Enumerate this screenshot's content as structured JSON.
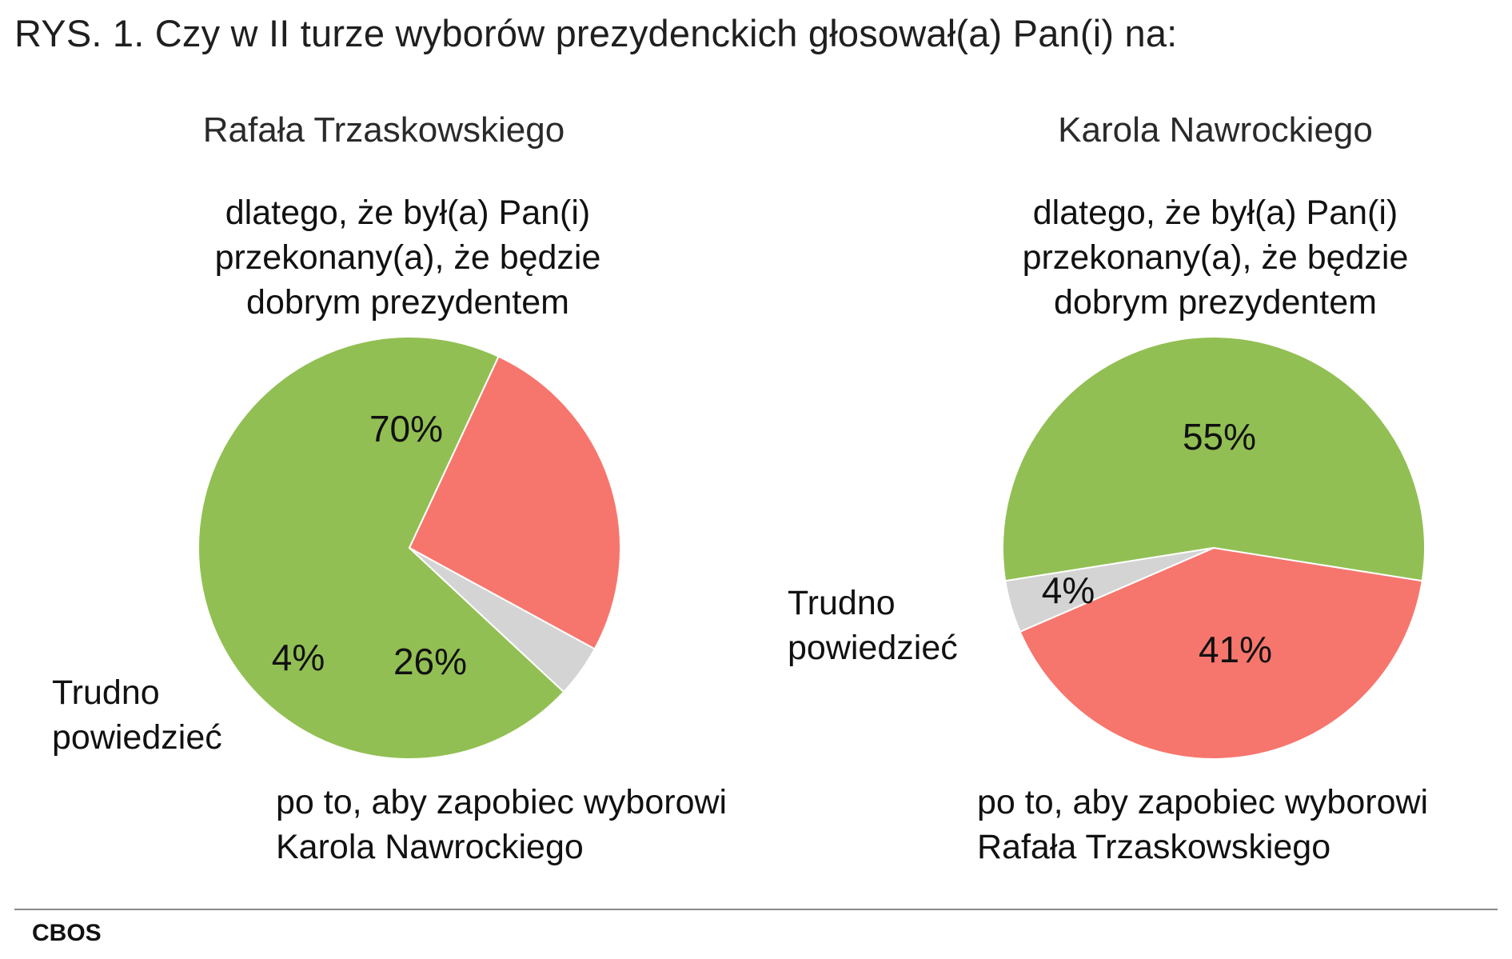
{
  "figure_title": "RYS. 1.  Czy w II turze wyborów prezydenckich głosował(a) Pan(i) na:",
  "source": "CBOS",
  "colors": {
    "green": "#92bf53",
    "red": "#f6766d",
    "grey": "#d4d4d4"
  },
  "chart_data": [
    {
      "type": "pie",
      "title": "Rafała Trzaskowskiego",
      "labels": [
        [
          "dlatego, że był(a) Pan(i)",
          "przekonany(a), że będzie",
          "dobrym prezydentem"
        ],
        [
          "po to, aby zapobiec wyborowi",
          "Karola Nawrockiego"
        ],
        [
          "Trudno",
          "powiedzieć"
        ]
      ],
      "values": [
        70,
        26,
        4
      ],
      "value_labels": [
        "70%",
        "26%",
        "4%"
      ],
      "colors": [
        "#92bf53",
        "#f6766d",
        "#d4d4d4"
      ]
    },
    {
      "type": "pie",
      "title": "Karola Nawrockiego",
      "labels": [
        [
          "dlatego, że był(a) Pan(i)",
          "przekonany(a), że będzie",
          "dobrym prezydentem"
        ],
        [
          "po to, aby zapobiec wyborowi",
          "Rafała Trzaskowskiego"
        ],
        [
          "Trudno",
          "powiedzieć"
        ]
      ],
      "values": [
        55,
        41,
        4
      ],
      "value_labels": [
        "55%",
        "41%",
        "4%"
      ],
      "colors": [
        "#92bf53",
        "#f6766d",
        "#d4d4d4"
      ]
    }
  ]
}
